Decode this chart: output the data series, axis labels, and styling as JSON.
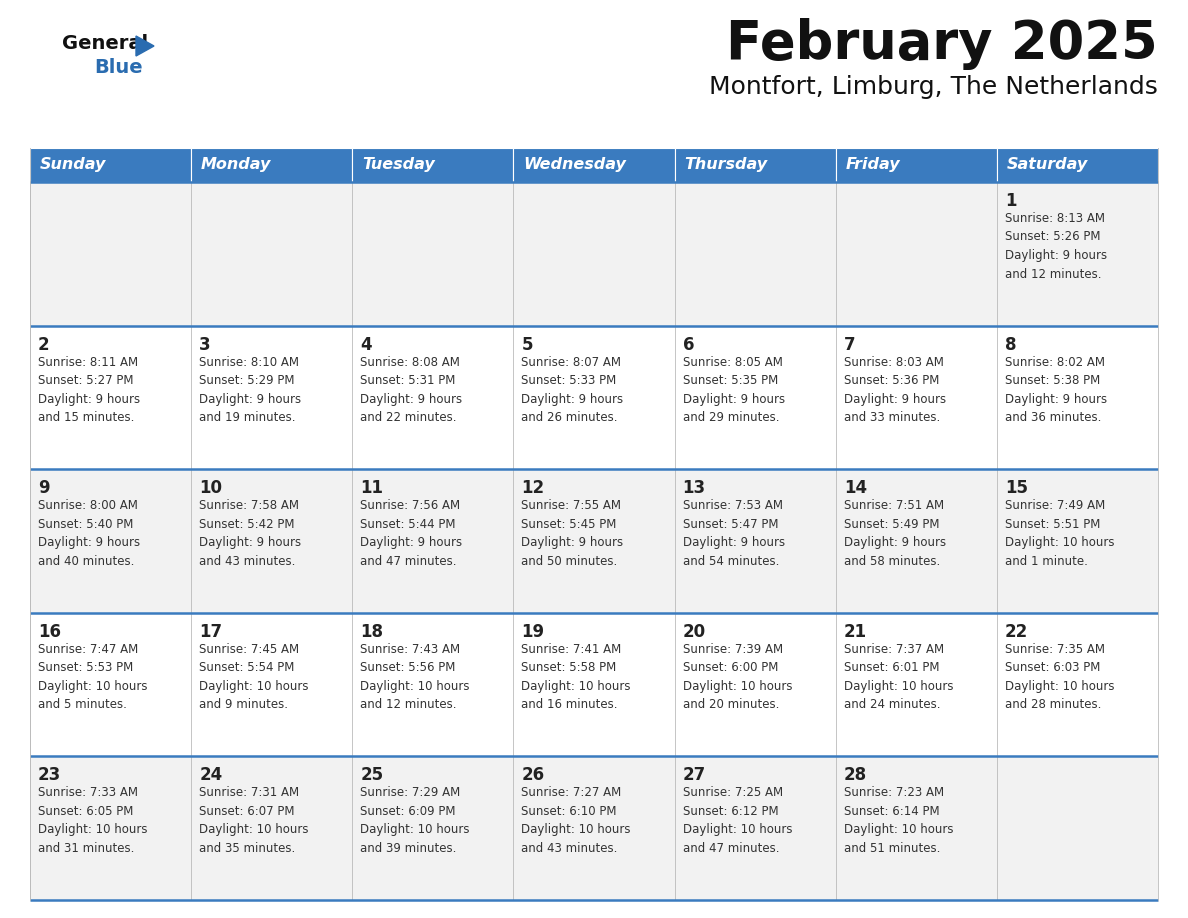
{
  "title": "February 2025",
  "subtitle": "Montfort, Limburg, The Netherlands",
  "days_of_week": [
    "Sunday",
    "Monday",
    "Tuesday",
    "Wednesday",
    "Thursday",
    "Friday",
    "Saturday"
  ],
  "header_bg": "#3a7bbf",
  "header_text": "#ffffff",
  "row_bg_odd": "#f2f2f2",
  "row_bg_even": "#ffffff",
  "cell_border_color": "#3a7bbf",
  "cell_line_color": "#bbbbbb",
  "day_num_color": "#222222",
  "info_color": "#333333",
  "title_color": "#111111",
  "subtitle_color": "#111111",
  "logo_general_color": "#111111",
  "logo_blue_color": "#2a6cb0",
  "logo_triangle_color": "#2a6cb0",
  "calendar_data": [
    [
      {
        "day": null,
        "info": ""
      },
      {
        "day": null,
        "info": ""
      },
      {
        "day": null,
        "info": ""
      },
      {
        "day": null,
        "info": ""
      },
      {
        "day": null,
        "info": ""
      },
      {
        "day": null,
        "info": ""
      },
      {
        "day": 1,
        "info": "Sunrise: 8:13 AM\nSunset: 5:26 PM\nDaylight: 9 hours\nand 12 minutes."
      }
    ],
    [
      {
        "day": 2,
        "info": "Sunrise: 8:11 AM\nSunset: 5:27 PM\nDaylight: 9 hours\nand 15 minutes."
      },
      {
        "day": 3,
        "info": "Sunrise: 8:10 AM\nSunset: 5:29 PM\nDaylight: 9 hours\nand 19 minutes."
      },
      {
        "day": 4,
        "info": "Sunrise: 8:08 AM\nSunset: 5:31 PM\nDaylight: 9 hours\nand 22 minutes."
      },
      {
        "day": 5,
        "info": "Sunrise: 8:07 AM\nSunset: 5:33 PM\nDaylight: 9 hours\nand 26 minutes."
      },
      {
        "day": 6,
        "info": "Sunrise: 8:05 AM\nSunset: 5:35 PM\nDaylight: 9 hours\nand 29 minutes."
      },
      {
        "day": 7,
        "info": "Sunrise: 8:03 AM\nSunset: 5:36 PM\nDaylight: 9 hours\nand 33 minutes."
      },
      {
        "day": 8,
        "info": "Sunrise: 8:02 AM\nSunset: 5:38 PM\nDaylight: 9 hours\nand 36 minutes."
      }
    ],
    [
      {
        "day": 9,
        "info": "Sunrise: 8:00 AM\nSunset: 5:40 PM\nDaylight: 9 hours\nand 40 minutes."
      },
      {
        "day": 10,
        "info": "Sunrise: 7:58 AM\nSunset: 5:42 PM\nDaylight: 9 hours\nand 43 minutes."
      },
      {
        "day": 11,
        "info": "Sunrise: 7:56 AM\nSunset: 5:44 PM\nDaylight: 9 hours\nand 47 minutes."
      },
      {
        "day": 12,
        "info": "Sunrise: 7:55 AM\nSunset: 5:45 PM\nDaylight: 9 hours\nand 50 minutes."
      },
      {
        "day": 13,
        "info": "Sunrise: 7:53 AM\nSunset: 5:47 PM\nDaylight: 9 hours\nand 54 minutes."
      },
      {
        "day": 14,
        "info": "Sunrise: 7:51 AM\nSunset: 5:49 PM\nDaylight: 9 hours\nand 58 minutes."
      },
      {
        "day": 15,
        "info": "Sunrise: 7:49 AM\nSunset: 5:51 PM\nDaylight: 10 hours\nand 1 minute."
      }
    ],
    [
      {
        "day": 16,
        "info": "Sunrise: 7:47 AM\nSunset: 5:53 PM\nDaylight: 10 hours\nand 5 minutes."
      },
      {
        "day": 17,
        "info": "Sunrise: 7:45 AM\nSunset: 5:54 PM\nDaylight: 10 hours\nand 9 minutes."
      },
      {
        "day": 18,
        "info": "Sunrise: 7:43 AM\nSunset: 5:56 PM\nDaylight: 10 hours\nand 12 minutes."
      },
      {
        "day": 19,
        "info": "Sunrise: 7:41 AM\nSunset: 5:58 PM\nDaylight: 10 hours\nand 16 minutes."
      },
      {
        "day": 20,
        "info": "Sunrise: 7:39 AM\nSunset: 6:00 PM\nDaylight: 10 hours\nand 20 minutes."
      },
      {
        "day": 21,
        "info": "Sunrise: 7:37 AM\nSunset: 6:01 PM\nDaylight: 10 hours\nand 24 minutes."
      },
      {
        "day": 22,
        "info": "Sunrise: 7:35 AM\nSunset: 6:03 PM\nDaylight: 10 hours\nand 28 minutes."
      }
    ],
    [
      {
        "day": 23,
        "info": "Sunrise: 7:33 AM\nSunset: 6:05 PM\nDaylight: 10 hours\nand 31 minutes."
      },
      {
        "day": 24,
        "info": "Sunrise: 7:31 AM\nSunset: 6:07 PM\nDaylight: 10 hours\nand 35 minutes."
      },
      {
        "day": 25,
        "info": "Sunrise: 7:29 AM\nSunset: 6:09 PM\nDaylight: 10 hours\nand 39 minutes."
      },
      {
        "day": 26,
        "info": "Sunrise: 7:27 AM\nSunset: 6:10 PM\nDaylight: 10 hours\nand 43 minutes."
      },
      {
        "day": 27,
        "info": "Sunrise: 7:25 AM\nSunset: 6:12 PM\nDaylight: 10 hours\nand 47 minutes."
      },
      {
        "day": 28,
        "info": "Sunrise: 7:23 AM\nSunset: 6:14 PM\nDaylight: 10 hours\nand 51 minutes."
      },
      {
        "day": null,
        "info": ""
      }
    ]
  ]
}
